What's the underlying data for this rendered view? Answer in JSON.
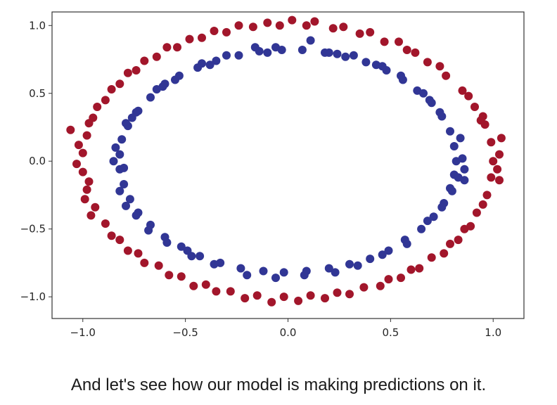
{
  "chart_data": {
    "type": "scatter",
    "title": "",
    "xlabel": "",
    "ylabel": "",
    "xlim": [
      -1.15,
      1.15
    ],
    "ylim": [
      -1.16,
      1.1
    ],
    "xticks": [
      -1.0,
      -0.5,
      0.0,
      0.5,
      1.0
    ],
    "yticks": [
      -1.0,
      -0.5,
      0.0,
      0.5,
      1.0
    ],
    "xtick_labels": [
      "−1.0",
      "−0.5",
      "0.0",
      "0.5",
      "1.0"
    ],
    "ytick_labels": [
      "−1.0",
      "−0.5",
      "0.0",
      "0.5",
      "1.0"
    ],
    "grid": false,
    "legend": "none",
    "series": [
      {
        "color": "#a2162b",
        "description_of_shape": "outer ring",
        "points": [
          [
            1.0,
            0.0
          ],
          [
            0.99,
            0.14
          ],
          [
            0.96,
            0.27
          ],
          [
            0.91,
            0.4
          ],
          [
            0.85,
            0.52
          ],
          [
            0.77,
            0.63
          ],
          [
            0.68,
            0.73
          ],
          [
            0.58,
            0.82
          ],
          [
            0.47,
            0.88
          ],
          [
            0.35,
            0.94
          ],
          [
            0.22,
            0.98
          ],
          [
            0.09,
            1.0
          ],
          [
            -0.04,
            1.0
          ],
          [
            -0.17,
            0.99
          ],
          [
            -0.3,
            0.95
          ],
          [
            -0.42,
            0.91
          ],
          [
            -0.54,
            0.84
          ],
          [
            -0.64,
            0.77
          ],
          [
            -0.74,
            0.67
          ],
          [
            -0.82,
            0.57
          ],
          [
            -0.89,
            0.45
          ],
          [
            -0.95,
            0.32
          ],
          [
            -0.98,
            0.19
          ],
          [
            -1.0,
            0.06
          ],
          [
            -1.0,
            -0.08
          ],
          [
            -0.98,
            -0.21
          ],
          [
            -0.94,
            -0.34
          ],
          [
            -0.89,
            -0.46
          ],
          [
            -0.82,
            -0.58
          ],
          [
            -0.73,
            -0.68
          ],
          [
            -0.63,
            -0.77
          ],
          [
            -0.52,
            -0.85
          ],
          [
            -0.4,
            -0.91
          ],
          [
            -0.28,
            -0.96
          ],
          [
            -0.15,
            -0.99
          ],
          [
            -0.02,
            -1.0
          ],
          [
            0.11,
            -0.99
          ],
          [
            0.24,
            -0.97
          ],
          [
            0.37,
            -0.93
          ],
          [
            0.49,
            -0.87
          ],
          [
            0.6,
            -0.8
          ],
          [
            0.7,
            -0.71
          ],
          [
            0.79,
            -0.61
          ],
          [
            0.86,
            -0.5
          ],
          [
            0.92,
            -0.38
          ],
          [
            0.97,
            -0.25
          ],
          [
            0.99,
            -0.12
          ],
          [
            1.03,
            0.05
          ],
          [
            1.02,
            -0.06
          ],
          [
            0.95,
            0.33
          ],
          [
            0.74,
            0.7
          ],
          [
            0.4,
            0.95
          ],
          [
            0.02,
            1.04
          ],
          [
            -0.36,
            0.96
          ],
          [
            -0.7,
            0.74
          ],
          [
            -0.93,
            0.4
          ],
          [
            -1.06,
            0.23
          ],
          [
            -1.03,
            -0.02
          ],
          [
            -0.96,
            -0.4
          ],
          [
            -0.7,
            -0.75
          ],
          [
            -0.35,
            -0.96
          ],
          [
            0.05,
            -1.03
          ],
          [
            0.45,
            -0.92
          ],
          [
            0.76,
            -0.68
          ],
          [
            0.95,
            -0.32
          ],
          [
            1.04,
            0.17
          ],
          [
            0.88,
            0.48
          ],
          [
            0.54,
            0.88
          ],
          [
            0.13,
            1.03
          ],
          [
            -0.24,
            1.0
          ],
          [
            -0.59,
            0.84
          ],
          [
            -0.86,
            0.53
          ],
          [
            -1.02,
            0.12
          ],
          [
            -0.99,
            -0.28
          ],
          [
            -0.78,
            -0.66
          ],
          [
            -0.46,
            -0.92
          ],
          [
            -0.08,
            -1.04
          ],
          [
            0.3,
            -0.98
          ],
          [
            0.64,
            -0.79
          ],
          [
            0.89,
            -0.48
          ],
          [
            1.03,
            -0.14
          ],
          [
            0.94,
            0.3
          ],
          [
            0.62,
            0.8
          ],
          [
            0.27,
            0.99
          ],
          [
            -0.1,
            1.02
          ],
          [
            -0.48,
            0.9
          ],
          [
            -0.78,
            0.65
          ],
          [
            -0.97,
            0.28
          ],
          [
            -0.97,
            -0.15
          ],
          [
            -0.86,
            -0.55
          ],
          [
            -0.58,
            -0.84
          ],
          [
            -0.21,
            -1.01
          ],
          [
            0.18,
            -1.01
          ],
          [
            0.55,
            -0.86
          ],
          [
            0.83,
            -0.58
          ]
        ]
      },
      {
        "color": "#313695",
        "description_of_shape": "inner ring",
        "points": [
          [
            0.82,
            0.0
          ],
          [
            0.81,
            0.11
          ],
          [
            0.79,
            0.22
          ],
          [
            0.75,
            0.33
          ],
          [
            0.7,
            0.43
          ],
          [
            0.63,
            0.52
          ],
          [
            0.56,
            0.6
          ],
          [
            0.48,
            0.67
          ],
          [
            0.38,
            0.73
          ],
          [
            0.28,
            0.77
          ],
          [
            0.18,
            0.8
          ],
          [
            0.07,
            0.82
          ],
          [
            -0.03,
            0.82
          ],
          [
            -0.14,
            0.81
          ],
          [
            -0.24,
            0.78
          ],
          [
            -0.35,
            0.74
          ],
          [
            -0.44,
            0.69
          ],
          [
            -0.53,
            0.63
          ],
          [
            -0.61,
            0.55
          ],
          [
            -0.67,
            0.47
          ],
          [
            -0.73,
            0.37
          ],
          [
            -0.78,
            0.26
          ],
          [
            -0.81,
            0.16
          ],
          [
            -0.82,
            0.05
          ],
          [
            -0.82,
            -0.06
          ],
          [
            -0.8,
            -0.17
          ],
          [
            -0.77,
            -0.28
          ],
          [
            -0.73,
            -0.38
          ],
          [
            -0.67,
            -0.47
          ],
          [
            -0.6,
            -0.56
          ],
          [
            -0.52,
            -0.63
          ],
          [
            -0.43,
            -0.7
          ],
          [
            -0.33,
            -0.75
          ],
          [
            -0.23,
            -0.79
          ],
          [
            -0.12,
            -0.81
          ],
          [
            -0.02,
            -0.82
          ],
          [
            0.09,
            -0.81
          ],
          [
            0.2,
            -0.79
          ],
          [
            0.3,
            -0.76
          ],
          [
            0.4,
            -0.72
          ],
          [
            0.49,
            -0.66
          ],
          [
            0.57,
            -0.58
          ],
          [
            0.65,
            -0.5
          ],
          [
            0.71,
            -0.41
          ],
          [
            0.76,
            -0.31
          ],
          [
            0.79,
            -0.2
          ],
          [
            0.81,
            -0.1
          ],
          [
            0.85,
            0.02
          ],
          [
            0.83,
            -0.12
          ],
          [
            0.74,
            0.36
          ],
          [
            0.55,
            0.63
          ],
          [
            0.32,
            0.78
          ],
          [
            0.11,
            0.89
          ],
          [
            -0.16,
            0.84
          ],
          [
            -0.42,
            0.72
          ],
          [
            -0.64,
            0.53
          ],
          [
            -0.79,
            0.28
          ],
          [
            -0.85,
            0.0
          ],
          [
            -0.82,
            -0.22
          ],
          [
            -0.68,
            -0.51
          ],
          [
            -0.47,
            -0.7
          ],
          [
            -0.2,
            -0.84
          ],
          [
            0.08,
            -0.84
          ],
          [
            0.34,
            -0.77
          ],
          [
            0.58,
            -0.61
          ],
          [
            0.75,
            -0.34
          ],
          [
            0.86,
            -0.06
          ],
          [
            0.84,
            0.17
          ],
          [
            0.66,
            0.5
          ],
          [
            0.43,
            0.71
          ],
          [
            0.2,
            0.8
          ],
          [
            -0.06,
            0.84
          ],
          [
            -0.3,
            0.78
          ],
          [
            -0.55,
            0.6
          ],
          [
            -0.74,
            0.36
          ],
          [
            -0.84,
            0.1
          ],
          [
            -0.79,
            -0.33
          ],
          [
            -0.59,
            -0.6
          ],
          [
            -0.36,
            -0.76
          ],
          [
            -0.06,
            -0.86
          ],
          [
            0.23,
            -0.82
          ],
          [
            0.46,
            -0.69
          ],
          [
            0.68,
            -0.44
          ],
          [
            0.8,
            -0.22
          ],
          [
            0.86,
            -0.14
          ],
          [
            0.69,
            0.45
          ],
          [
            0.46,
            0.7
          ],
          [
            0.24,
            0.79
          ],
          [
            -0.1,
            0.8
          ],
          [
            -0.38,
            0.71
          ],
          [
            -0.6,
            0.57
          ],
          [
            -0.76,
            0.32
          ],
          [
            -0.8,
            -0.05
          ],
          [
            -0.74,
            -0.4
          ],
          [
            -0.49,
            -0.66
          ]
        ]
      }
    ]
  },
  "caption": "And let's see how our model is making predictions on it."
}
